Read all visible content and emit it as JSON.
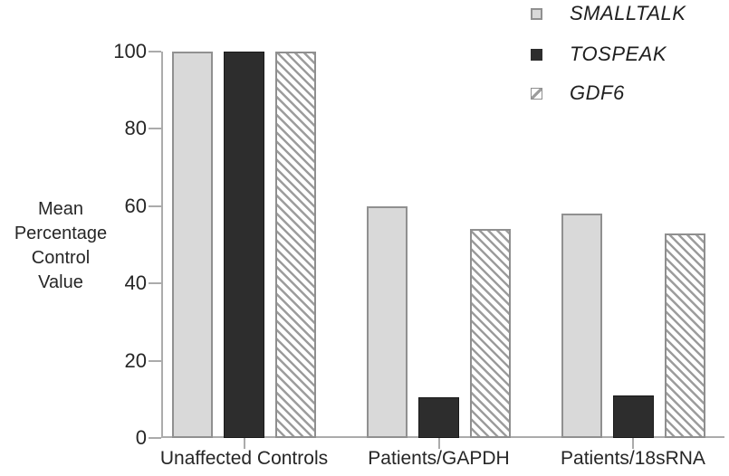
{
  "chart_data": {
    "type": "bar",
    "title": "",
    "xlabel": "",
    "ylabel": "Mean\nPercentage\nControl\nValue",
    "categories": [
      "Unaffected Controls",
      "Patients/GAPDH",
      "Patients/18sRNA"
    ],
    "series": [
      {
        "name": "SMALLTALK",
        "style": "light-gray",
        "values": [
          100,
          60,
          58
        ]
      },
      {
        "name": "TOSPEAK",
        "style": "black",
        "values": [
          100,
          10.5,
          11
        ]
      },
      {
        "name": "GDF6",
        "style": "hatched",
        "values": [
          100,
          54,
          53
        ]
      }
    ],
    "y_ticks": [
      0,
      20,
      40,
      60,
      80,
      100
    ],
    "ylim": [
      0,
      100
    ],
    "grid": false,
    "legend_position": "top-right"
  },
  "colors": {
    "light_gray_fill": "#d9d9d9",
    "light_gray_border": "#909090",
    "black_fill": "#2d2d2d",
    "hatch_line": "#9c9c9c",
    "hatch_border": "#8f8f8f",
    "axis": "#ababab",
    "text": "#262626"
  }
}
